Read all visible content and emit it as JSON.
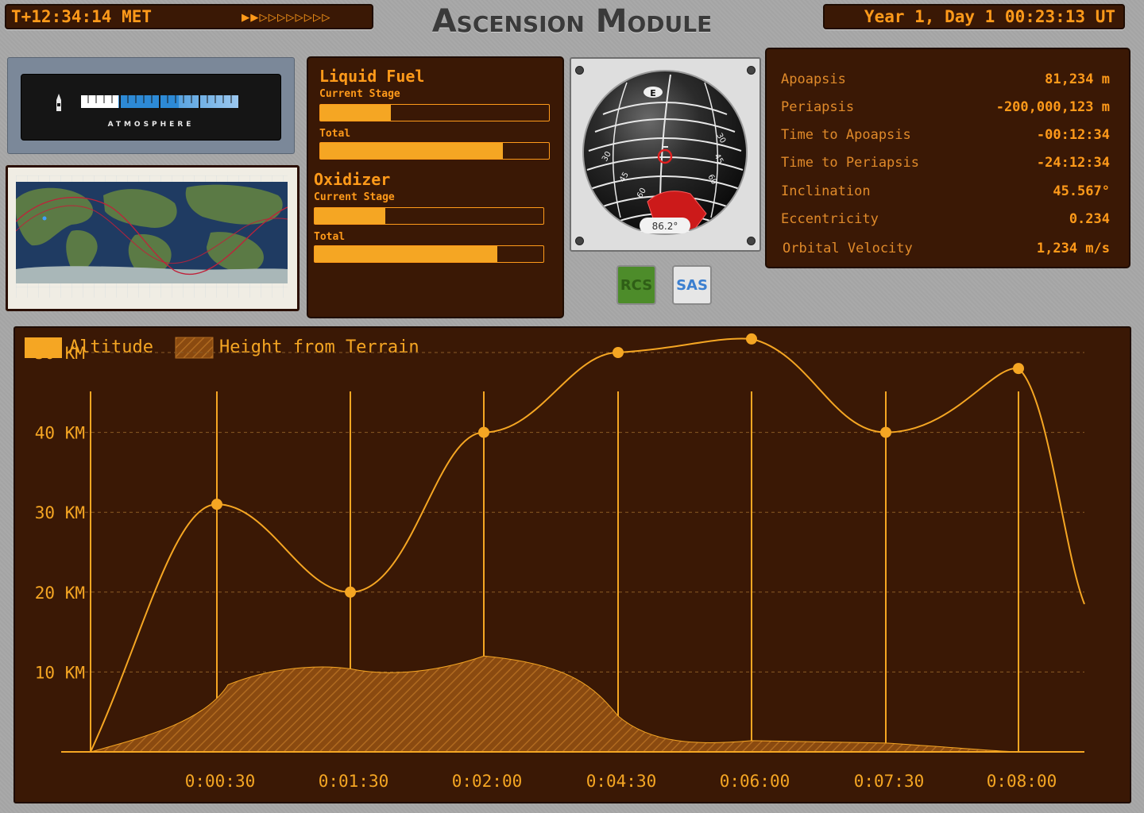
{
  "header": {
    "met": "T+12:34:14 MET",
    "title": "Ascension Module",
    "ut": "Year 1, Day 1 00:23:13 UT",
    "warp": {
      "active": 2,
      "total": 10,
      "active_glyph": "▶",
      "inactive_glyph": "▷"
    }
  },
  "atmosphere": {
    "label": "ATMOSPHERE",
    "depth": 0.24
  },
  "resources": {
    "liquid_fuel": {
      "title": "Liquid Fuel",
      "stage_label": "Current Stage",
      "stage": 0.31,
      "total_label": "Total",
      "total": 0.8
    },
    "oxidizer": {
      "title": "Oxidizer",
      "stage_label": "Current Stage",
      "stage": 0.31,
      "total_label": "Total",
      "total": 0.8
    }
  },
  "navball": {
    "heading": "86.2°",
    "marker": "E"
  },
  "buttons": {
    "rcs": "RCS",
    "sas": "SAS"
  },
  "orbit": [
    {
      "label": "Apoapsis",
      "value": "81,234 m"
    },
    {
      "label": "Periapsis",
      "value": "-200,000,123 m"
    },
    {
      "label": "Time to Apoapsis",
      "value": "-00:12:34"
    },
    {
      "label": "Time to Periapsis",
      "value": "-24:12:34"
    },
    {
      "label": "Inclination",
      "value": "45.567°"
    },
    {
      "label": "Eccentricity",
      "value": "0.234"
    },
    {
      "label": "Orbital Velocity",
      "value": "1,234 m/s"
    }
  ],
  "colors": {
    "panel": "#3a1805",
    "accent": "#f5a623",
    "text": "#ff9a1a"
  },
  "chart_data": {
    "type": "area",
    "legend": [
      "Altitude",
      "Height from Terrain"
    ],
    "y_ticks": [
      "10 KM",
      "20 KM",
      "30 KM",
      "40 KM",
      "50 KM"
    ],
    "y_tick_values": [
      10,
      20,
      30,
      40,
      50
    ],
    "x_ticks": [
      "0:00:30",
      "0:01:30",
      "0:02:00",
      "0:04:30",
      "0:06:00",
      "0:07:30",
      "0:08:00"
    ],
    "ylim": [
      0,
      55
    ],
    "series": [
      {
        "name": "Altitude",
        "values": [
          0,
          31,
          20,
          40,
          50,
          52,
          40,
          48,
          19
        ]
      },
      {
        "name": "Height from Terrain",
        "values": [
          0,
          8,
          11,
          10,
          12,
          1,
          1.5,
          1,
          0,
          0
        ]
      }
    ],
    "grid": true,
    "legend_position": "top-left"
  }
}
